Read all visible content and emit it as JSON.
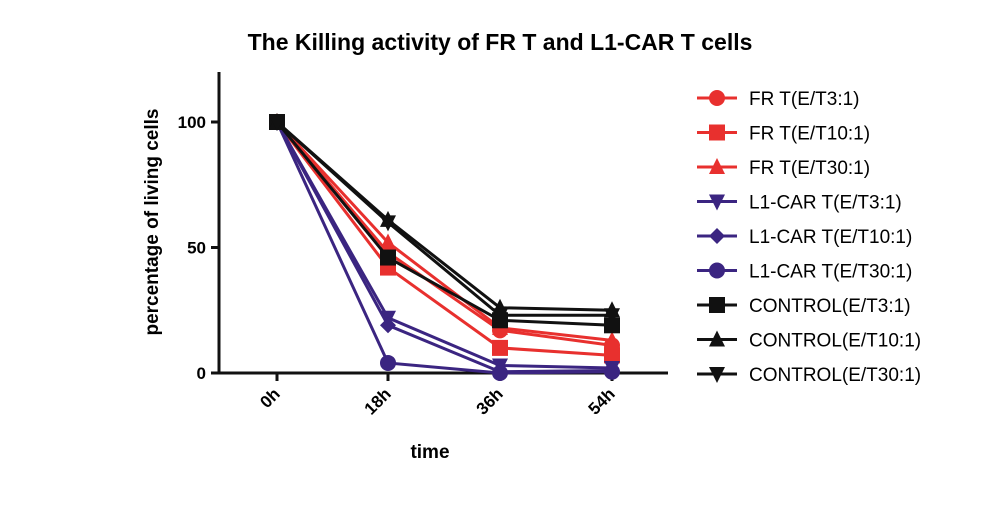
{
  "chart_data": {
    "type": "line",
    "title": "The Killing activity of FR T and L1-CAR T cells",
    "xlabel": "time",
    "ylabel": "percentage of living cells",
    "categories": [
      "0h",
      "18h",
      "36h",
      "54h"
    ],
    "ylim": [
      0,
      120
    ],
    "yticks": [
      "0",
      "50",
      "100"
    ],
    "legend_position": "right",
    "series": [
      {
        "name": "FR T(E/T3:1)",
        "color": "#e8302e",
        "marker": "circle",
        "values": [
          100,
          48,
          17,
          11
        ]
      },
      {
        "name": "FR T(E/T10:1)",
        "color": "#e8302e",
        "marker": "square",
        "values": [
          100,
          42,
          10,
          7
        ]
      },
      {
        "name": "FR T(E/T30:1)",
        "color": "#e8302e",
        "marker": "triangle-up",
        "values": [
          100,
          52,
          18,
          13
        ]
      },
      {
        "name": "L1-CAR T(E/T3:1)",
        "color": "#3b2581",
        "marker": "triangle-down",
        "values": [
          100,
          22,
          3,
          2
        ]
      },
      {
        "name": "L1-CAR T(E/T10:1)",
        "color": "#3b2581",
        "marker": "diamond",
        "values": [
          100,
          19,
          0.5,
          1
        ]
      },
      {
        "name": "L1-CAR T(E/T30:1)",
        "color": "#3b2581",
        "marker": "circle",
        "values": [
          100,
          4,
          0,
          0.5
        ]
      },
      {
        "name": "CONTROL(E/T3:1)",
        "color": "#111111",
        "marker": "square",
        "values": [
          100,
          46,
          21,
          19
        ]
      },
      {
        "name": "CONTROL(E/T10:1)",
        "color": "#111111",
        "marker": "triangle-up",
        "values": [
          100,
          61,
          26,
          25
        ]
      },
      {
        "name": "CONTROL(E/T30:1)",
        "color": "#111111",
        "marker": "triangle-down",
        "values": [
          100,
          60,
          23,
          23
        ]
      }
    ]
  }
}
